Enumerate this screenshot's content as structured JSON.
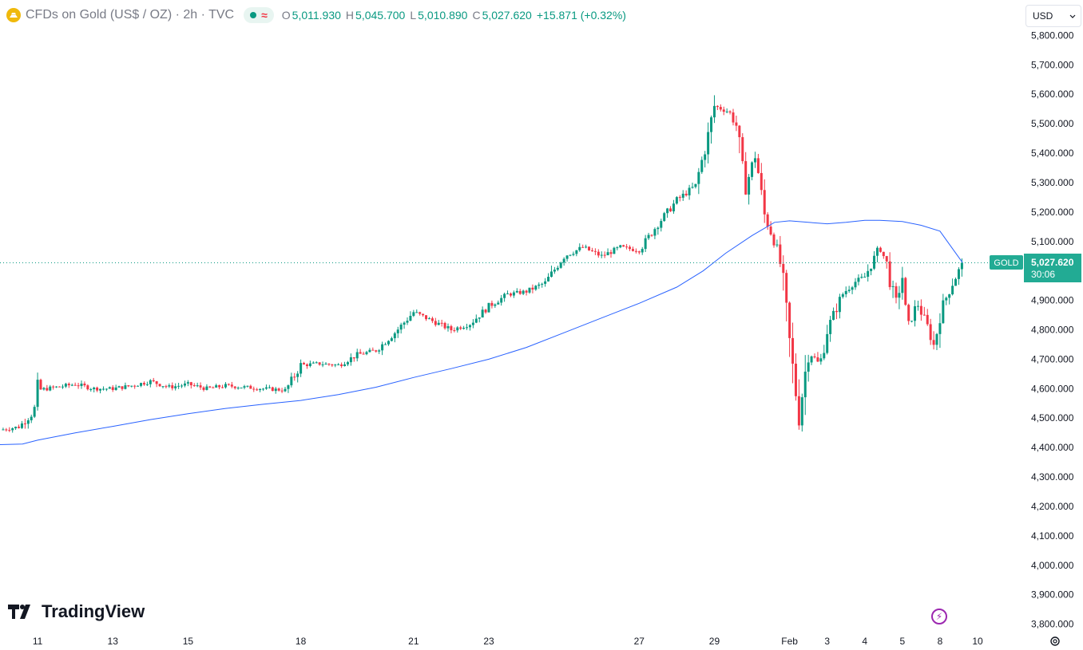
{
  "header": {
    "symbol": "CFDs on Gold (US$ / OZ) · 2h · TVC",
    "open_label": "O",
    "open": "5,011.930",
    "high_label": "H",
    "high": "5,045.700",
    "low_label": "L",
    "low": "5,010.890",
    "close_label": "C",
    "close": "5,027.620",
    "change": "+15.871 (+0.32%)"
  },
  "currency": "USD",
  "price_tag": {
    "symbol": "GOLD",
    "price": "5,027.620",
    "countdown": "30:06"
  },
  "branding": "TradingView",
  "colors": {
    "up": "#089981",
    "down": "#f23645",
    "ma": "#2962ff",
    "tag": "#22ab94"
  },
  "chart_data": {
    "type": "candlestick",
    "title": "CFDs on Gold (US$ / OZ) · 2h · TVC",
    "ylim": [
      3780,
      5820
    ],
    "y_ticks": [
      3800,
      3900,
      4000,
      4100,
      4200,
      4300,
      4400,
      4500,
      4600,
      4700,
      4800,
      4900,
      5100,
      5200,
      5300,
      5400,
      5500,
      5600,
      5700,
      5800
    ],
    "y_tick_labels": [
      "3,800.000",
      "3,900.000",
      "4,000.000",
      "4,100.000",
      "4,200.000",
      "4,300.000",
      "4,400.000",
      "4,500.000",
      "4,600.000",
      "4,700.000",
      "4,800.000",
      "4,900.000",
      "5,100.000",
      "5,200.000",
      "5,300.000",
      "5,400.000",
      "5,500.000",
      "5,600.000",
      "5,700.000",
      "5,800.000"
    ],
    "x_ticks": [
      {
        "label": "11",
        "t": 11
      },
      {
        "label": "13",
        "t": 13
      },
      {
        "label": "15",
        "t": 15
      },
      {
        "label": "18",
        "t": 18
      },
      {
        "label": "21",
        "t": 21
      },
      {
        "label": "23",
        "t": 23
      },
      {
        "label": "27",
        "t": 27
      },
      {
        "label": "29",
        "t": 29
      },
      {
        "label": "Feb",
        "t": 31
      },
      {
        "label": "3",
        "t": 32
      },
      {
        "label": "4",
        "t": 33
      },
      {
        "label": "5",
        "t": 34
      },
      {
        "label": "8",
        "t": 35
      },
      {
        "label": "10",
        "t": 36
      }
    ],
    "last_price": 5027.62,
    "close_path": [
      [
        10.0,
        4460
      ],
      [
        10.5,
        4470
      ],
      [
        10.9,
        4520
      ],
      [
        11.0,
        4595
      ],
      [
        11.5,
        4605
      ],
      [
        12.0,
        4615
      ],
      [
        12.5,
        4600
      ],
      [
        13.0,
        4600
      ],
      [
        13.5,
        4610
      ],
      [
        14.0,
        4625
      ],
      [
        14.5,
        4605
      ],
      [
        15.0,
        4615
      ],
      [
        15.5,
        4600
      ],
      [
        16.0,
        4610
      ],
      [
        16.5,
        4605
      ],
      [
        17.0,
        4600
      ],
      [
        17.6,
        4595
      ],
      [
        18.0,
        4680
      ],
      [
        18.5,
        4685
      ],
      [
        19.0,
        4680
      ],
      [
        19.5,
        4715
      ],
      [
        20.0,
        4730
      ],
      [
        20.5,
        4790
      ],
      [
        21.0,
        4860
      ],
      [
        21.5,
        4830
      ],
      [
        22.0,
        4800
      ],
      [
        22.5,
        4820
      ],
      [
        23.0,
        4880
      ],
      [
        23.5,
        4920
      ],
      [
        24.0,
        4930
      ],
      [
        24.5,
        4960
      ],
      [
        25.0,
        5050
      ],
      [
        25.5,
        5080
      ],
      [
        26.0,
        5050
      ],
      [
        26.5,
        5080
      ],
      [
        27.0,
        5070
      ],
      [
        27.5,
        5160
      ],
      [
        28.0,
        5240
      ],
      [
        28.5,
        5290
      ],
      [
        28.8,
        5440
      ],
      [
        29.0,
        5560
      ],
      [
        29.4,
        5540
      ],
      [
        29.6,
        5490
      ],
      [
        29.8,
        5270
      ],
      [
        30.1,
        5400
      ],
      [
        30.3,
        5200
      ],
      [
        30.6,
        5100
      ],
      [
        30.8,
        5000
      ],
      [
        30.9,
        4860
      ],
      [
        31.1,
        4650
      ],
      [
        31.25,
        4510
      ],
      [
        31.5,
        4730
      ],
      [
        31.8,
        4680
      ],
      [
        32.0,
        4800
      ],
      [
        32.4,
        4920
      ],
      [
        32.7,
        4960
      ],
      [
        33.0,
        4980
      ],
      [
        33.4,
        5080
      ],
      [
        33.6,
        5020
      ],
      [
        33.8,
        4880
      ],
      [
        34.0,
        4980
      ],
      [
        34.1,
        4800
      ],
      [
        34.4,
        4890
      ],
      [
        34.7,
        4800
      ],
      [
        34.85,
        4740
      ],
      [
        35.0,
        4860
      ],
      [
        35.3,
        4950
      ],
      [
        35.5,
        5000
      ],
      [
        35.6,
        5028
      ]
    ],
    "ma_series": [
      [
        10.0,
        4410
      ],
      [
        10.6,
        4412
      ],
      [
        11.0,
        4425
      ],
      [
        12.0,
        4450
      ],
      [
        13.0,
        4472
      ],
      [
        14.0,
        4495
      ],
      [
        15.0,
        4515
      ],
      [
        16.0,
        4533
      ],
      [
        17.0,
        4547
      ],
      [
        18.0,
        4560
      ],
      [
        19.0,
        4580
      ],
      [
        20.0,
        4605
      ],
      [
        21.0,
        4638
      ],
      [
        22.0,
        4668
      ],
      [
        23.0,
        4700
      ],
      [
        24.0,
        4740
      ],
      [
        25.0,
        4790
      ],
      [
        26.0,
        4840
      ],
      [
        27.0,
        4890
      ],
      [
        28.0,
        4945
      ],
      [
        28.7,
        5000
      ],
      [
        29.3,
        5060
      ],
      [
        30.0,
        5120
      ],
      [
        30.6,
        5165
      ],
      [
        31.0,
        5170
      ],
      [
        31.5,
        5165
      ],
      [
        32.0,
        5160
      ],
      [
        32.5,
        5165
      ],
      [
        33.0,
        5172
      ],
      [
        33.4,
        5172
      ],
      [
        34.0,
        5168
      ],
      [
        34.5,
        5155
      ],
      [
        35.0,
        5135
      ],
      [
        35.6,
        5028
      ]
    ]
  }
}
